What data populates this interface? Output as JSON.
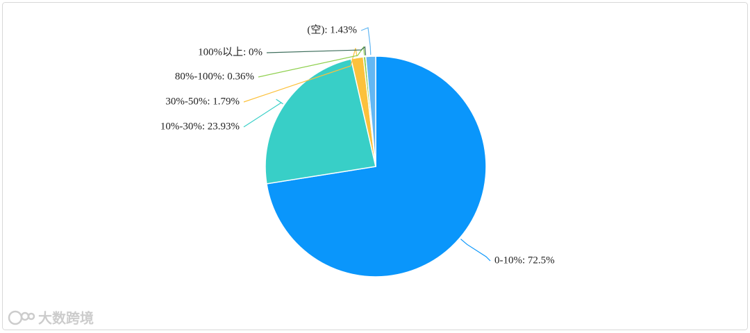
{
  "chart_data": {
    "type": "pie",
    "values": [
      72.5,
      23.93,
      1.79,
      0.36,
      0,
      1.43
    ],
    "value_labels": [
      "0-10%: 72.5%",
      "10%-30%: 23.93%",
      "30%-50%: 1.79%",
      "80%-100%: 0.36%",
      "100%以上: 0%",
      "(空): 1.43%"
    ],
    "colors": [
      "#0a96fb",
      "#38cfc7",
      "#fcc13c",
      "#8dcf4b",
      "#3e6e5c",
      "#63b7f3"
    ]
  },
  "watermark": "大数跨境"
}
